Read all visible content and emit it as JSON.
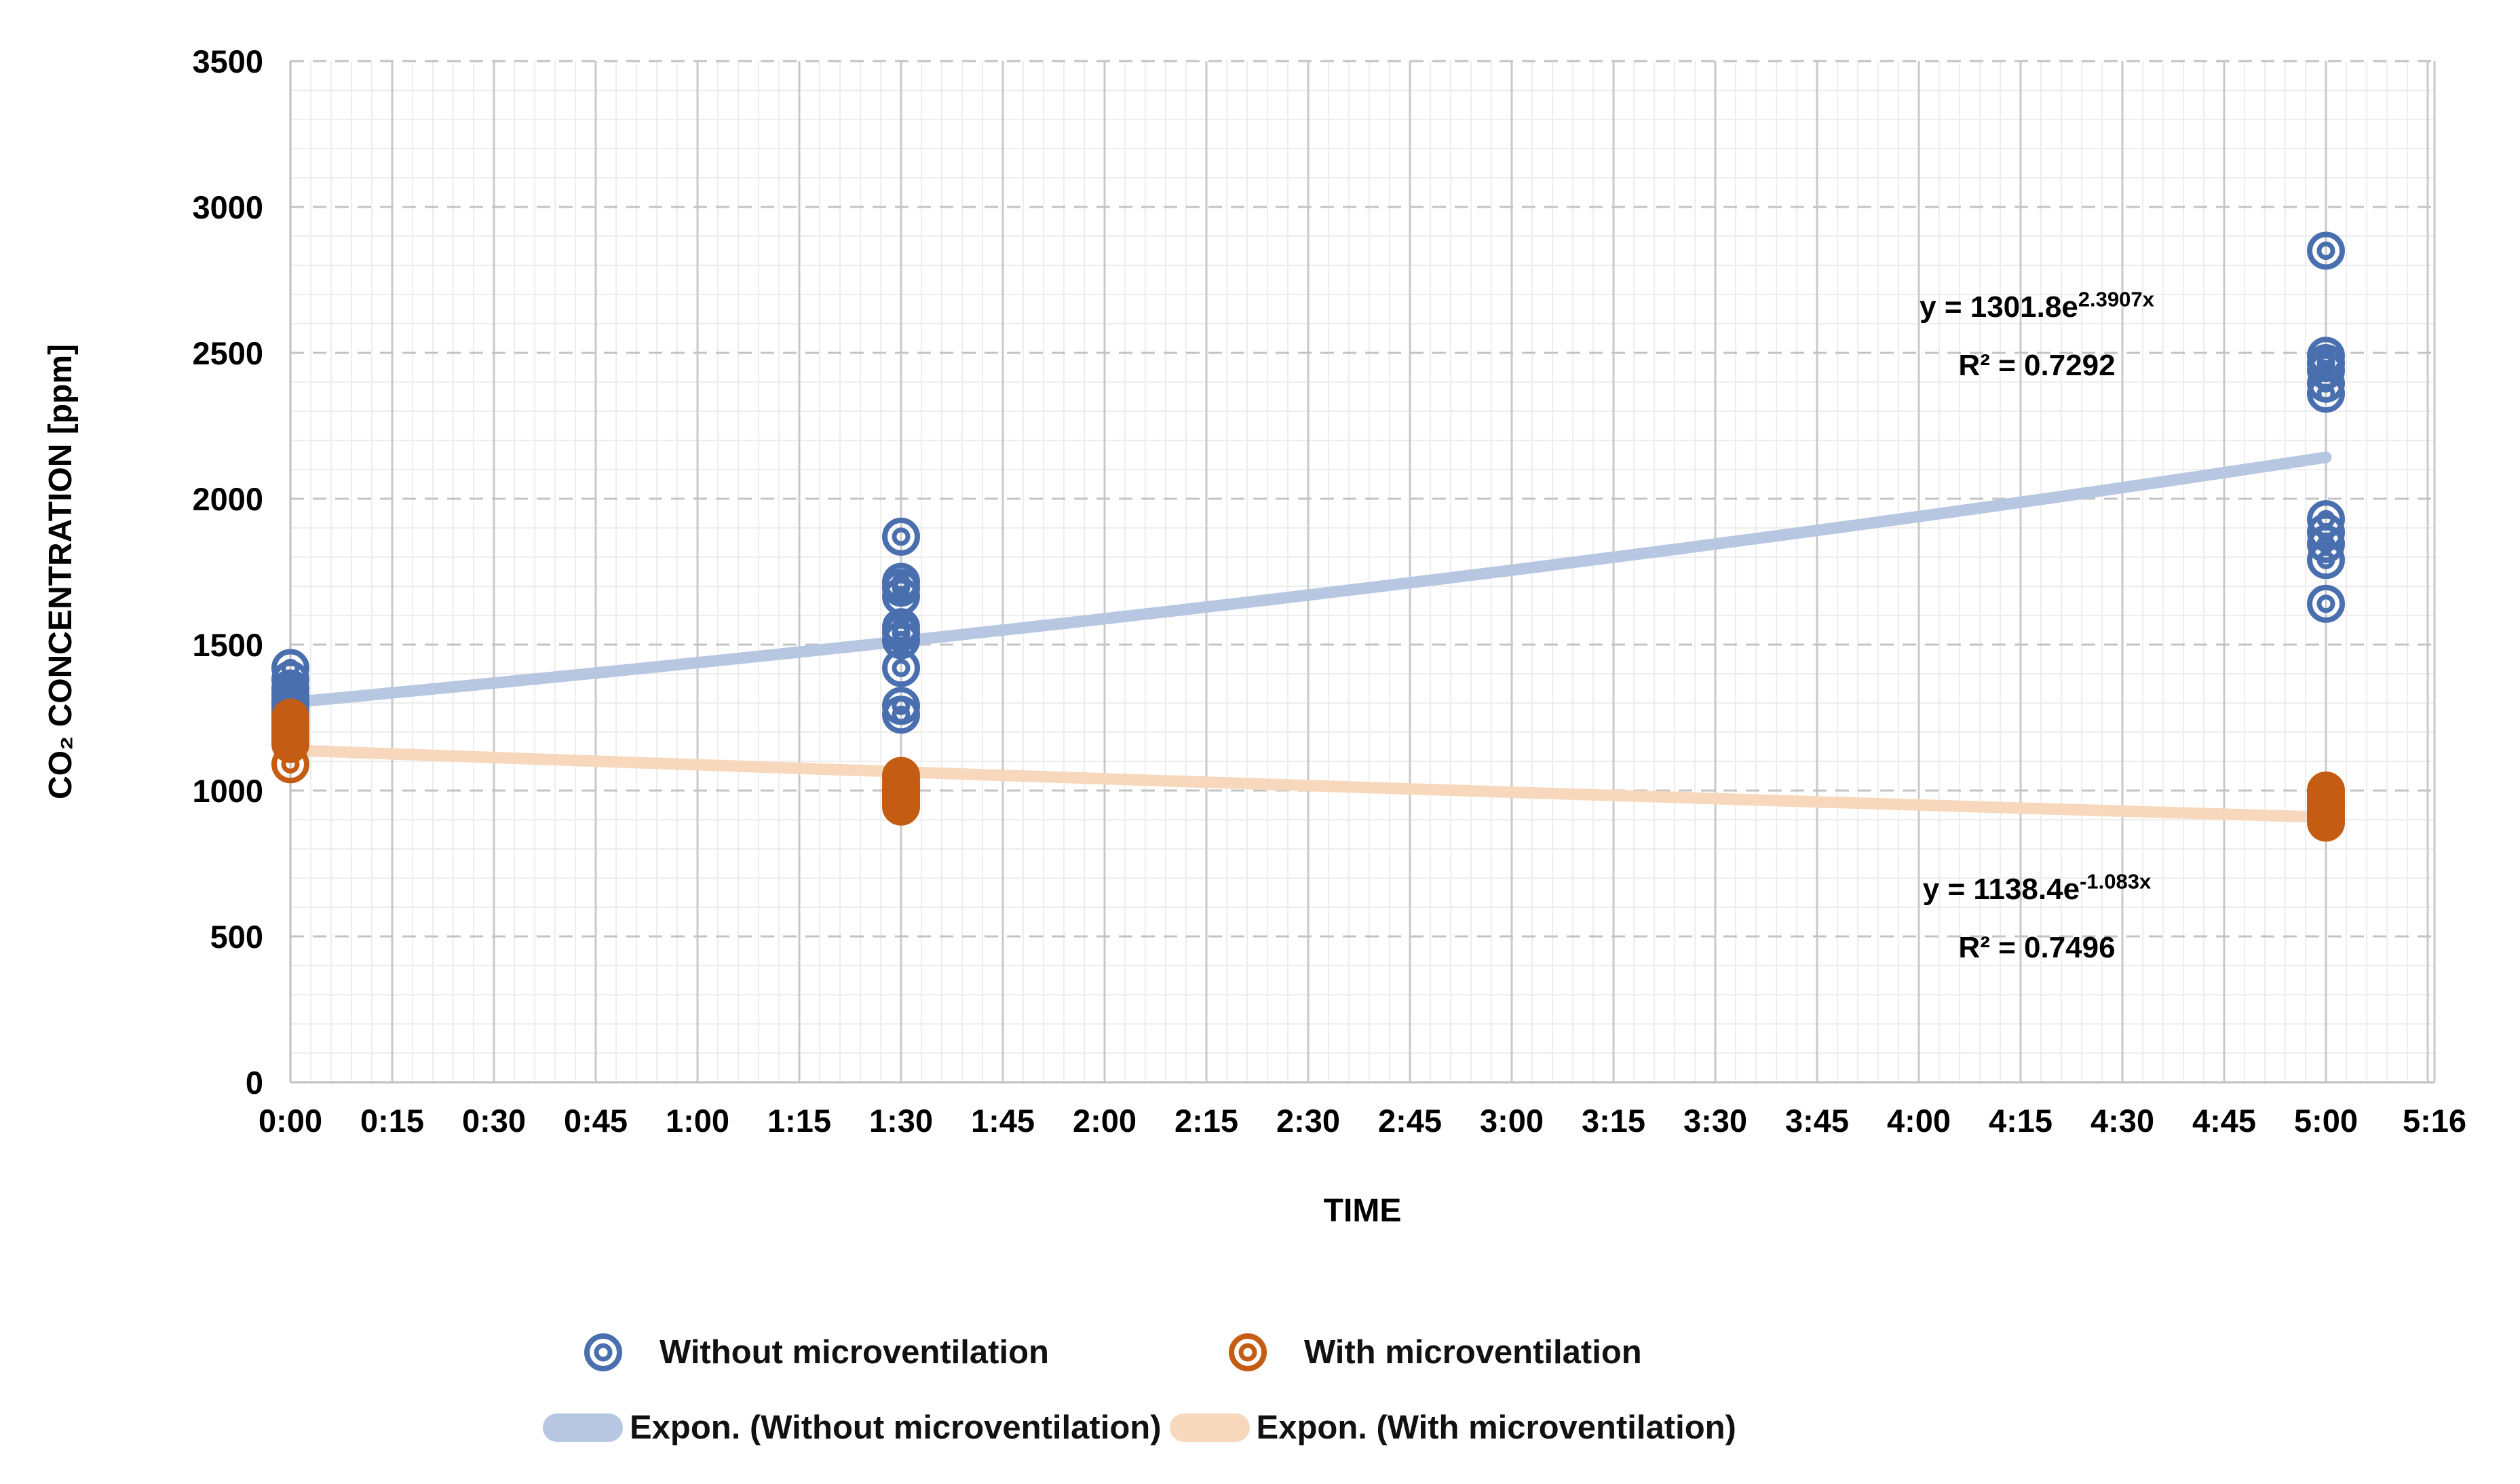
{
  "chart_data": {
    "type": "scatter",
    "title": "",
    "xlabel": "TIME",
    "ylabel": "CO₂ CONCENTRATION [ppm]",
    "x_axis": {
      "max_minutes": 316,
      "major_step_minutes": 15,
      "minor_step_minutes": 3,
      "ticks": [
        {
          "label": "0:00",
          "min": 0
        },
        {
          "label": "0:15",
          "min": 15
        },
        {
          "label": "0:30",
          "min": 30
        },
        {
          "label": "0:45",
          "min": 45
        },
        {
          "label": "1:00",
          "min": 60
        },
        {
          "label": "1:15",
          "min": 75
        },
        {
          "label": "1:30",
          "min": 90
        },
        {
          "label": "1:45",
          "min": 105
        },
        {
          "label": "2:00",
          "min": 120
        },
        {
          "label": "2:15",
          "min": 135
        },
        {
          "label": "2:30",
          "min": 150
        },
        {
          "label": "2:45",
          "min": 165
        },
        {
          "label": "3:00",
          "min": 180
        },
        {
          "label": "3:15",
          "min": 195
        },
        {
          "label": "3:30",
          "min": 210
        },
        {
          "label": "3:45",
          "min": 225
        },
        {
          "label": "4:00",
          "min": 240
        },
        {
          "label": "4:15",
          "min": 255
        },
        {
          "label": "4:30",
          "min": 270
        },
        {
          "label": "4:45",
          "min": 285
        },
        {
          "label": "5:00",
          "min": 300
        },
        {
          "label": "5:16",
          "min": 316
        }
      ]
    },
    "y_axis": {
      "min": 0,
      "max": 3500,
      "major_step": 500,
      "minor_step": 100,
      "tick_labels": [
        "0",
        "500",
        "1000",
        "1500",
        "2000",
        "2500",
        "3000",
        "3500"
      ]
    },
    "grid": {
      "major_color": "#c9c9c9",
      "major_dash_color": "#c3c3c3",
      "minor_color": "#ededed",
      "axis_color": "#bfbfbf"
    },
    "series": [
      {
        "name": "Without microventilation",
        "color": "#4a6fae",
        "clusters": [
          {
            "t_min": 0,
            "values": [
              1420,
              1380,
              1350,
              1330,
              1310,
              1295,
              1280,
              1265,
              1250
            ]
          },
          {
            "t_min": 90,
            "values": [
              1870,
              1715,
              1695,
              1665,
              1560,
              1540,
              1515,
              1420,
              1290,
              1260
            ]
          },
          {
            "t_min": 300,
            "values": [
              2850,
              2490,
              2465,
              2440,
              2395,
              2360,
              1930,
              1885,
              1845,
              1790,
              1640
            ]
          }
        ]
      },
      {
        "name": "With microventilation",
        "color": "#c45c13",
        "clusters": [
          {
            "t_min": 0,
            "values": [
              1250,
              1235,
              1220,
              1210,
              1200,
              1190,
              1175,
              1160,
              1090
            ]
          },
          {
            "t_min": 90,
            "values": [
              1050,
              1035,
              1020,
              1010,
              1000,
              990,
              980,
              970,
              960,
              945
            ]
          },
          {
            "t_min": 300,
            "values": [
              1000,
              985,
              970,
              960,
              950,
              940,
              930,
              920,
              905,
              890
            ]
          }
        ]
      }
    ],
    "trendlines": [
      {
        "name": "Expon. (Without microventilation)",
        "color": "#b7c6e1",
        "a": 1301.8,
        "b": 2.3907,
        "t_end_min": 300,
        "equation_prefix": "y = 1301.8e",
        "equation_exponent": "2.3907x",
        "r2_label": "R² = 0.7292"
      },
      {
        "name": "Expon. (With microventilation)",
        "color": "#f8d8bc",
        "a": 1138.4,
        "b": -1.083,
        "t_end_min": 300,
        "equation_prefix": "y = 1138.4e",
        "equation_exponent": "-1.083x",
        "r2_label": "R² = 0.7496"
      }
    ],
    "legend_position": "bottom"
  },
  "legend": {
    "scatter_without_label": "Without microventilation",
    "scatter_with_label": "With microventilation",
    "expon_without_label": "Expon. (Without microventilation)",
    "expon_with_label": "Expon. (With microventilation)"
  }
}
